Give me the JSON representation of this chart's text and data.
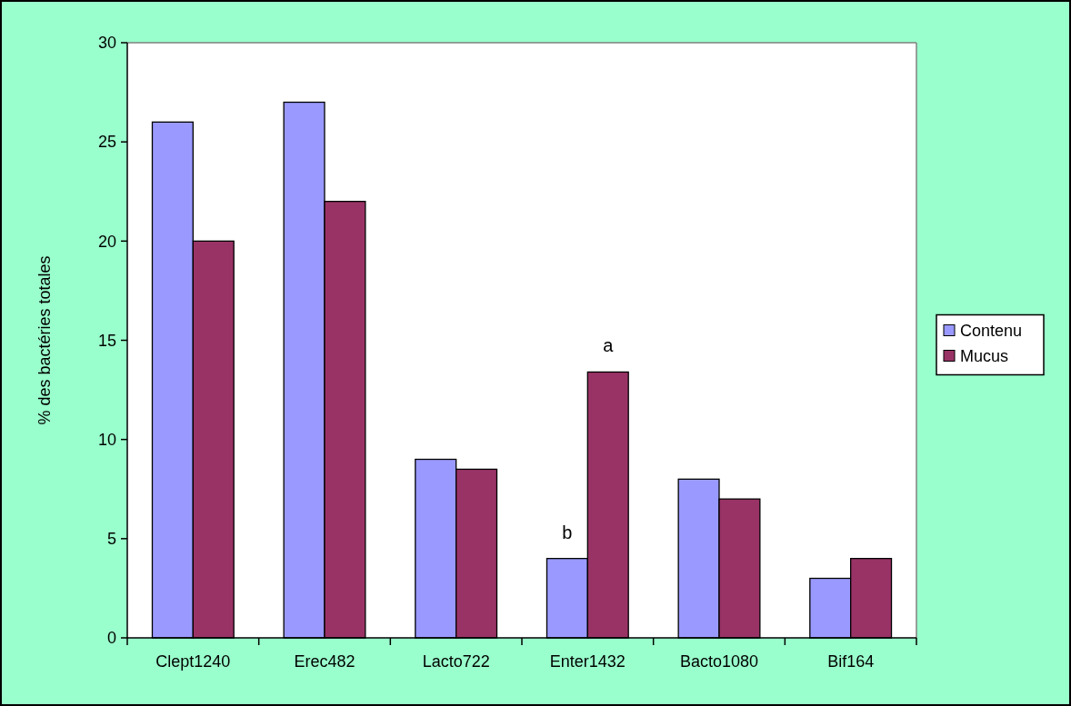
{
  "chart_data": {
    "type": "bar",
    "ylabel": "% des bactéries totales",
    "categories": [
      "Clept1240",
      "Erec482",
      "Lacto722",
      "Enter1432",
      "Bacto1080",
      "Bif164"
    ],
    "series": [
      {
        "name": "Contenu",
        "color": "#9999ff",
        "values": [
          26,
          27,
          9,
          4,
          8,
          3
        ]
      },
      {
        "name": "Mucus",
        "color": "#993366",
        "values": [
          20,
          22,
          8.5,
          13.4,
          7,
          4
        ]
      }
    ],
    "ylim": [
      0,
      30
    ],
    "yticks": [
      0,
      5,
      10,
      15,
      20,
      25,
      30
    ],
    "legend": "right",
    "grid": false,
    "annotations": [
      {
        "text": "b",
        "x": "Enter1432",
        "y": 4
      },
      {
        "text": "a",
        "x": "Enter1432",
        "y": 13.4
      }
    ]
  }
}
